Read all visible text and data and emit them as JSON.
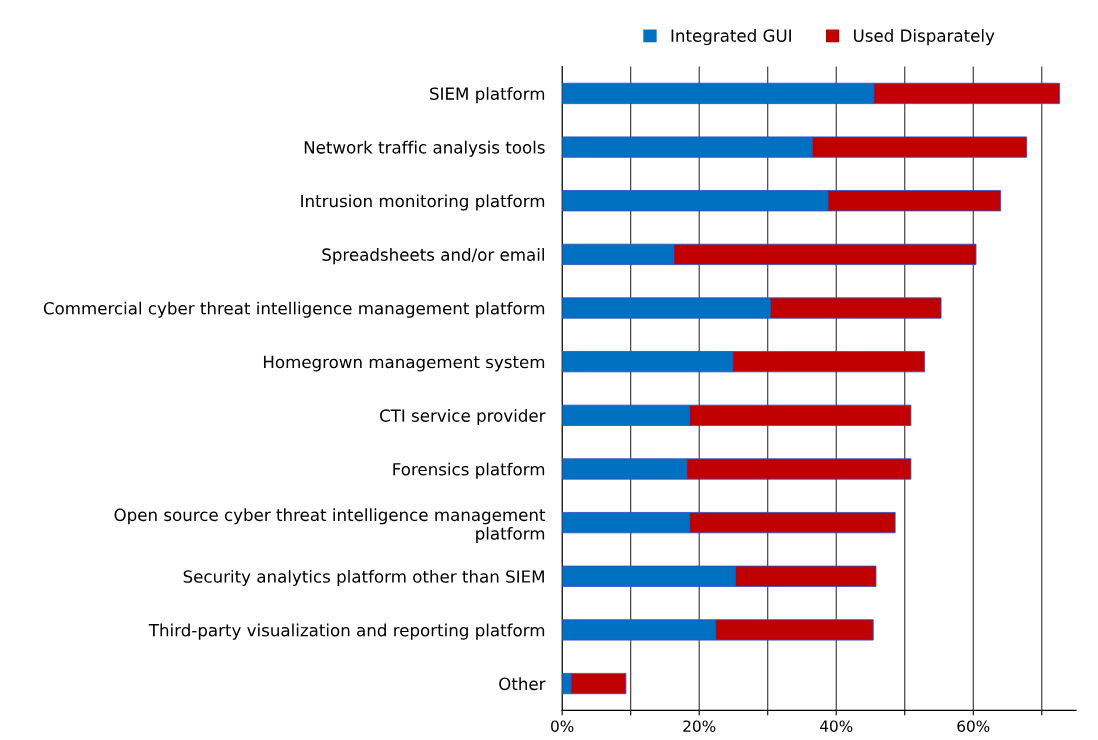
{
  "chart_data": {
    "type": "bar",
    "orientation": "horizontal",
    "stacked": true,
    "categories": [
      "SIEM platform",
      "Network traffic analysis tools",
      "Intrusion monitoring platform",
      "Spreadsheets and/or email",
      "Commercial cyber threat intelligence management platform",
      "Homegrown management system",
      "CTI service provider",
      "Forensics platform",
      "Open source cyber threat intelligence management\nplatform",
      "Security analytics platform other than SIEM",
      "Third-party visualization and reporting platform",
      "Other"
    ],
    "series": [
      {
        "name": "Integrated GUI",
        "color": "#0070c0",
        "values": [
          45.5,
          36.5,
          38.8,
          16.3,
          30.4,
          24.9,
          18.6,
          18.2,
          18.6,
          25.3,
          22.4,
          1.3
        ]
      },
      {
        "name": "Used Disparately",
        "color": "#c00000",
        "values": [
          27.1,
          31.3,
          25.2,
          44.1,
          24.9,
          28.0,
          32.3,
          32.7,
          30.0,
          20.5,
          23.0,
          8.0
        ]
      }
    ],
    "xlim": [
      0,
      75
    ],
    "xticks": [
      {
        "value": 0,
        "label": "0%"
      },
      {
        "value": 10,
        "label": null
      },
      {
        "value": 20,
        "label": "20%"
      },
      {
        "value": 30,
        "label": null
      },
      {
        "value": 40,
        "label": "40%"
      },
      {
        "value": 50,
        "label": null
      },
      {
        "value": 60,
        "label": "60%"
      },
      {
        "value": 70,
        "label": null
      }
    ],
    "grid": "x",
    "legend": "top"
  }
}
